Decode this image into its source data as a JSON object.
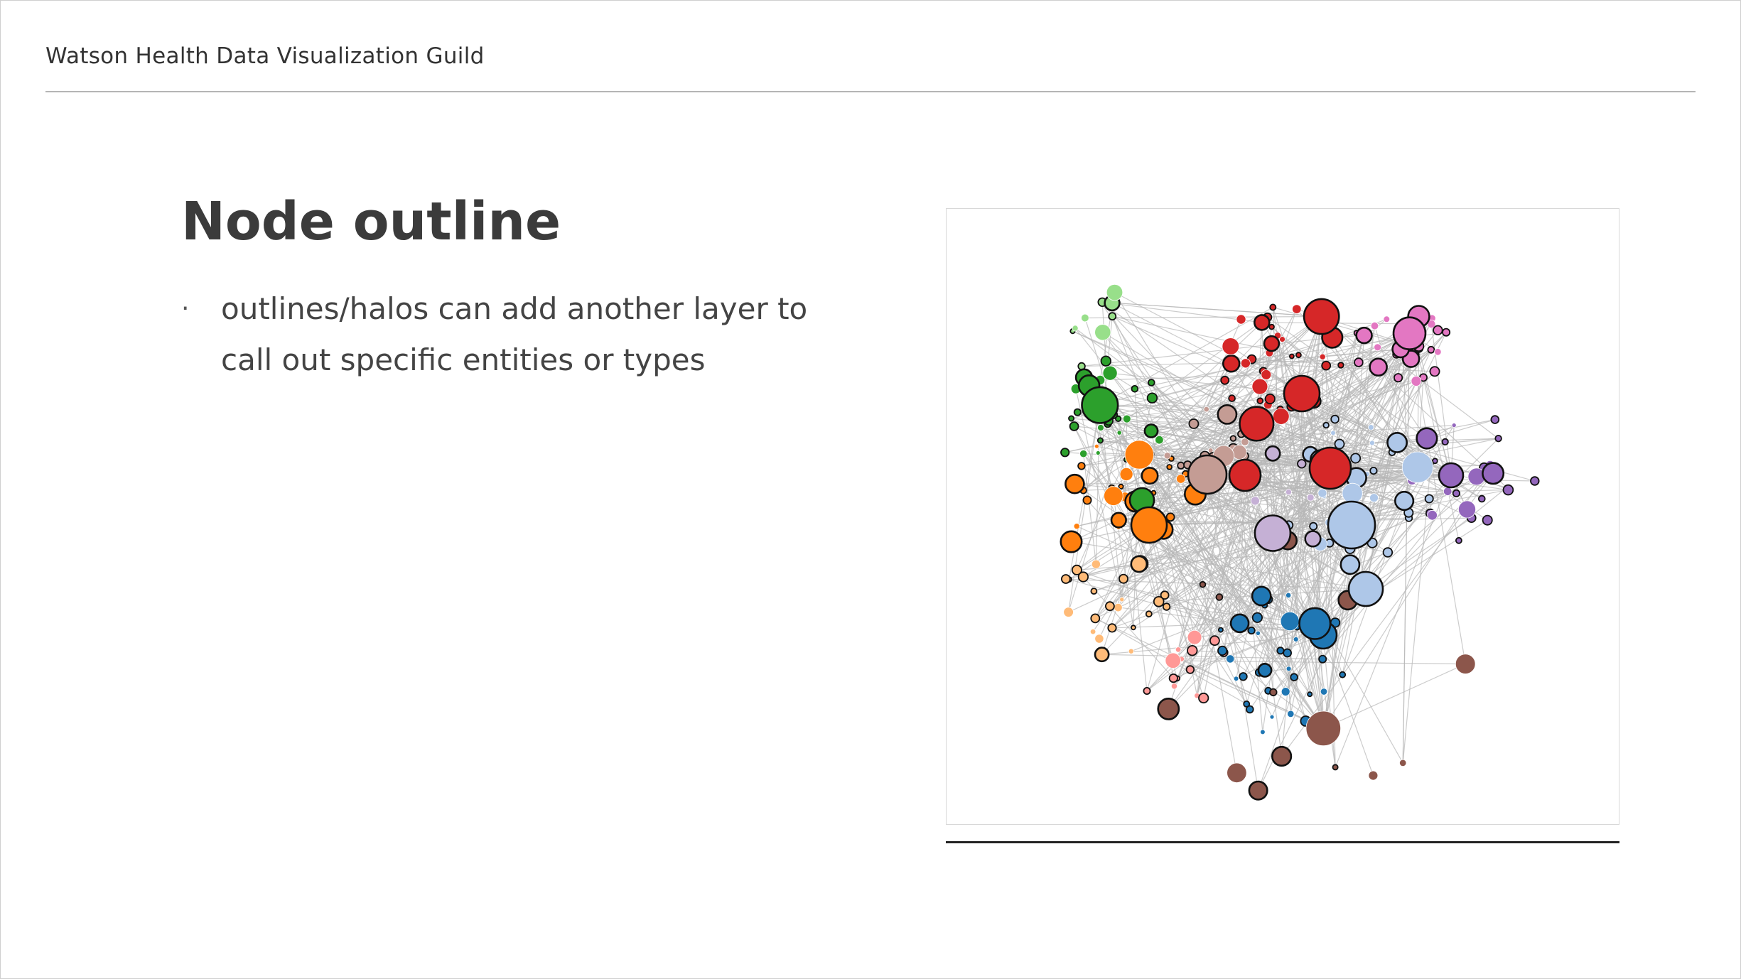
{
  "header": {
    "title": "Watson Health Data Visualization Guild"
  },
  "slide": {
    "title": "Node outline",
    "bullets": [
      {
        "text": "outlines/halos can add another layer to call out specific entities or types"
      }
    ]
  },
  "network": {
    "edge_color": "#b7b7b7",
    "outline_color": "#111111",
    "palette": {
      "red": "#d62728",
      "brown": "#c49c94",
      "blue": "#1f77b4",
      "lightblue": "#aec7e8",
      "green": "#2ca02c",
      "orange": "#ff7f0e",
      "pink": "#e377c2",
      "lightpink": "#f7b6d2",
      "purple": "#9467bd",
      "lightpurple": "#c5b0d5",
      "lightgreen": "#98df8a",
      "lightorange": "#ffbb78",
      "darkbrown": "#8c564b",
      "salmon": "#ff9896"
    }
  }
}
